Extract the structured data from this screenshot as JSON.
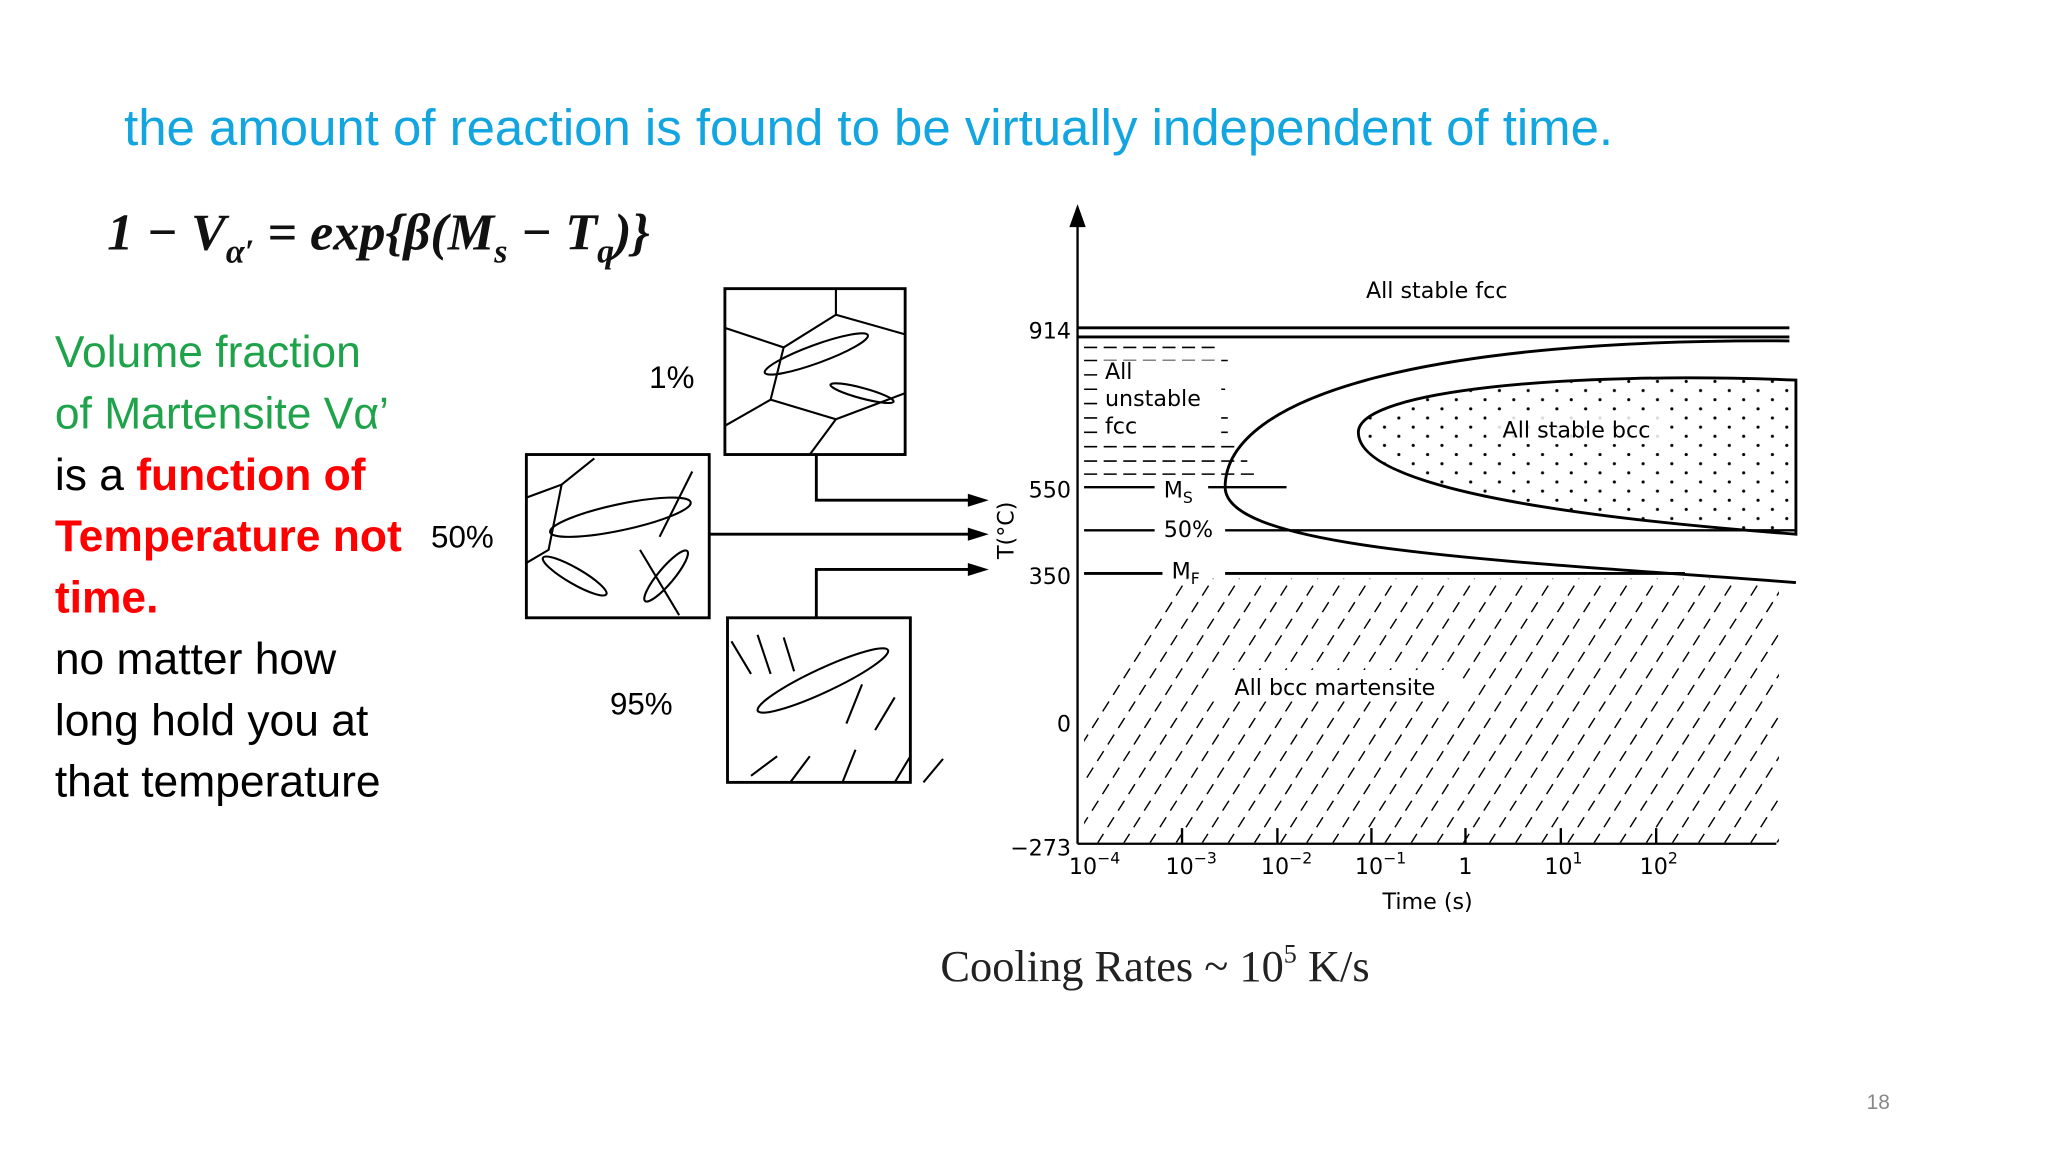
{
  "slide": {
    "title": "the amount of reaction is found to be virtually independent of time.",
    "equation": [
      "1 − V",
      "α′",
      " = exp{β(M",
      "s",
      " − T",
      "q",
      ")}"
    ],
    "text_lines": [
      [
        {
          "text": "Volume fraction",
          "color": "#1ea34a",
          "bold": false
        }
      ],
      [
        {
          "text": "of Martensite Vα’",
          "color": "#1ea34a",
          "bold": false
        }
      ],
      [
        {
          "text": "is a ",
          "color": "#000000",
          "bold": false
        },
        {
          "text": "function of",
          "color": "#ff0000",
          "bold": true
        }
      ],
      [
        {
          "text": "Temperature not",
          "color": "#ff0000",
          "bold": true
        }
      ],
      [
        {
          "text": "time.",
          "color": "#ff0000",
          "bold": true
        }
      ],
      [
        {
          "text": "no matter how",
          "color": "#000000",
          "bold": false
        }
      ],
      [
        {
          "text": "long hold you at",
          "color": "#000000",
          "bold": false
        }
      ],
      [
        {
          "text": "that temperature",
          "color": "#000000",
          "bold": false
        }
      ]
    ],
    "micrograph_labels": [
      "1%",
      "50%",
      "95%"
    ],
    "diagram": {
      "y_label": "T(°C)",
      "x_label": "Time (s)",
      "y_ticks": [
        "914",
        "550",
        "350",
        "0",
        "−273"
      ],
      "x_ticks": [
        {
          "base": "10",
          "exp": "−4"
        },
        {
          "base": "10",
          "exp": "−3"
        },
        {
          "base": "10",
          "exp": "−2"
        },
        {
          "base": "10",
          "exp": "−1"
        },
        {
          "base": "1"
        },
        {
          "base": "10",
          "exp": "1"
        },
        {
          "base": "10",
          "exp": "2"
        }
      ],
      "regions": {
        "stable_fcc": "All stable fcc",
        "unstable_fcc": [
          "All",
          "unstable",
          "fcc"
        ],
        "stable_bcc": "All stable bcc",
        "martensite": "All bcc martensite"
      },
      "lines": {
        "ms": [
          "M",
          "S"
        ],
        "half": "50%",
        "mf": [
          "M",
          "F"
        ]
      }
    },
    "caption": [
      "Cooling Rates ~ 10",
      "5",
      " K/s"
    ],
    "page_number": "18"
  }
}
